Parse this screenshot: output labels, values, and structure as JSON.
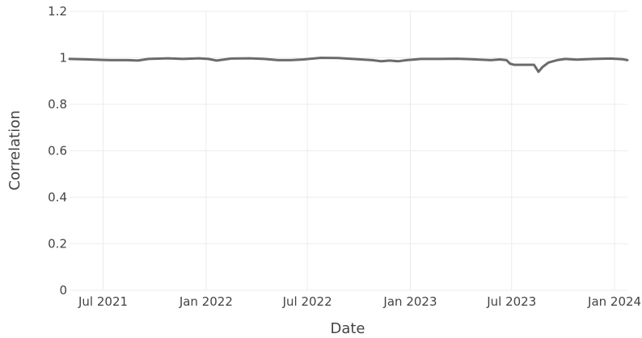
{
  "chart_data": {
    "type": "line",
    "title": "",
    "xlabel": "Date",
    "ylabel": "Correlation",
    "ylim": [
      0,
      1.2
    ],
    "xlim": [
      "2021-05-02",
      "2024-01-24"
    ],
    "grid": true,
    "legend": "none",
    "yticks": [
      {
        "value": 0,
        "label": "0"
      },
      {
        "value": 0.2,
        "label": "0.2"
      },
      {
        "value": 0.4,
        "label": "0.4"
      },
      {
        "value": 0.6,
        "label": "0.6"
      },
      {
        "value": 0.8,
        "label": "0.8"
      },
      {
        "value": 1,
        "label": "1"
      },
      {
        "value": 1.2,
        "label": "1.2"
      }
    ],
    "xticks": [
      {
        "value": "2021-07-01",
        "label": "Jul 2021"
      },
      {
        "value": "2022-01-01",
        "label": "Jan 2022"
      },
      {
        "value": "2022-07-01",
        "label": "Jul 2022"
      },
      {
        "value": "2023-01-01",
        "label": "Jan 2023"
      },
      {
        "value": "2023-07-01",
        "label": "Jul 2023"
      },
      {
        "value": "2024-01-01",
        "label": "Jan 2024"
      }
    ],
    "series": [
      {
        "color": "#6b6b6b",
        "x": [
          "2021-05-02",
          "2021-06-05",
          "2021-07-15",
          "2021-08-15",
          "2021-09-01",
          "2021-09-20",
          "2021-10-25",
          "2021-11-20",
          "2021-12-20",
          "2022-01-05",
          "2022-01-20",
          "2022-02-15",
          "2022-03-20",
          "2022-04-15",
          "2022-05-10",
          "2022-06-01",
          "2022-06-25",
          "2022-07-25",
          "2022-08-25",
          "2022-09-20",
          "2022-10-25",
          "2022-11-10",
          "2022-11-25",
          "2022-12-10",
          "2022-12-25",
          "2023-01-20",
          "2023-02-20",
          "2023-03-25",
          "2023-04-20",
          "2023-05-25",
          "2023-06-10",
          "2023-06-22",
          "2023-06-28",
          "2023-07-05",
          "2023-07-20",
          "2023-08-10",
          "2023-08-18",
          "2023-08-25",
          "2023-09-05",
          "2023-09-20",
          "2023-10-05",
          "2023-10-25",
          "2023-11-25",
          "2023-12-25",
          "2024-01-15",
          "2024-01-24"
        ],
        "y": [
          0.995,
          0.993,
          0.99,
          0.99,
          0.988,
          0.995,
          0.998,
          0.995,
          0.998,
          0.995,
          0.988,
          0.997,
          0.998,
          0.995,
          0.99,
          0.99,
          0.993,
          1.0,
          0.999,
          0.995,
          0.99,
          0.985,
          0.988,
          0.985,
          0.99,
          0.995,
          0.995,
          0.996,
          0.994,
          0.99,
          0.993,
          0.99,
          0.975,
          0.97,
          0.97,
          0.97,
          0.94,
          0.96,
          0.98,
          0.99,
          0.995,
          0.992,
          0.995,
          0.997,
          0.994,
          0.99
        ]
      }
    ]
  }
}
